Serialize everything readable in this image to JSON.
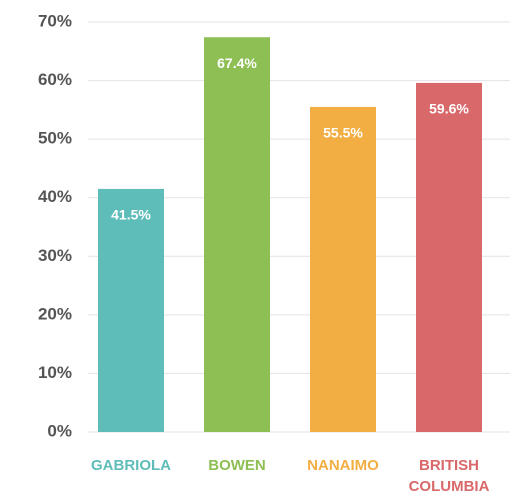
{
  "chart_data": {
    "type": "bar",
    "categories": [
      "GABRIOLA",
      "BOWEN",
      "NANAIMO",
      "BRITISH COLUMBIA"
    ],
    "values": [
      41.5,
      67.4,
      55.5,
      59.6
    ],
    "value_labels": [
      "41.5%",
      "67.4%",
      "55.5%",
      "59.6%"
    ],
    "colors": [
      "#5fbdb9",
      "#8dbf54",
      "#f2ae42",
      "#d9686a"
    ],
    "ylim": [
      0,
      70
    ],
    "yticks": [
      {
        "value": 0,
        "label": "0%"
      },
      {
        "value": 10,
        "label": "10%"
      },
      {
        "value": 20,
        "label": "20%"
      },
      {
        "value": 30,
        "label": "30%"
      },
      {
        "value": 40,
        "label": "40%"
      },
      {
        "value": 50,
        "label": "50%"
      },
      {
        "value": 60,
        "label": "60%"
      },
      {
        "value": 70,
        "label": "70%"
      }
    ],
    "grid": true
  }
}
